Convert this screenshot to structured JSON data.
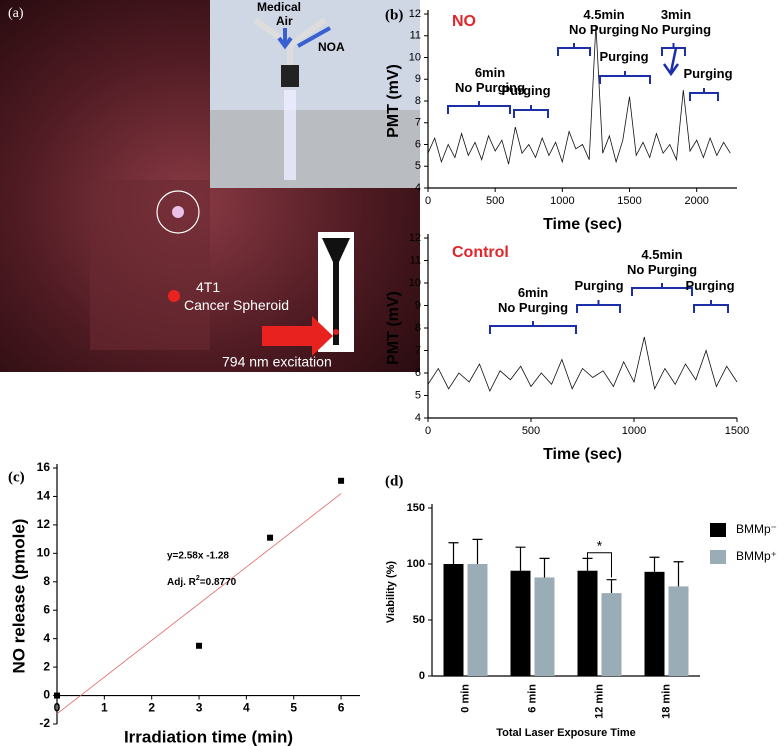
{
  "photo": {
    "panel": "(a)",
    "labels": [
      {
        "lines": [
          "Medical",
          "Air"
        ]
      },
      {
        "lines": [
          "NOA"
        ]
      },
      {
        "lines": [
          "4T1",
          "Cancer Spheroid"
        ]
      },
      {
        "lines": [
          "794 nm excitation"
        ]
      }
    ]
  },
  "chart_data": [
    {
      "type": "line",
      "panel": "(b)",
      "label": "NO",
      "label_color": "#e0262a",
      "annotation_color": "#1c2fa8",
      "xlabel": "Time (sec)",
      "ylabel": "PMT (mV)",
      "xlim": [
        0,
        2300
      ],
      "xticks": [
        0,
        500,
        1000,
        1500,
        2000
      ],
      "ylim": [
        4,
        12
      ],
      "yticks": [
        4,
        5,
        6,
        7,
        8,
        9,
        10,
        11,
        12
      ],
      "annotations": [
        {
          "lines": [
            "6min",
            "No Purging"
          ]
        },
        {
          "lines": [
            "Purging"
          ]
        },
        {
          "lines": [
            "4.5min",
            "No Purging"
          ]
        },
        {
          "lines": [
            "Purging"
          ]
        },
        {
          "lines": [
            "3min",
            "No Purging"
          ]
        },
        {
          "lines": [
            "Purging"
          ]
        }
      ],
      "series": [
        {
          "color": "#111111",
          "x": [
            0,
            50,
            100,
            150,
            200,
            250,
            300,
            350,
            400,
            450,
            500,
            550,
            600,
            650,
            700,
            750,
            800,
            850,
            900,
            950,
            1000,
            1050,
            1100,
            1150,
            1200,
            1250,
            1300,
            1350,
            1400,
            1450,
            1500,
            1550,
            1600,
            1650,
            1700,
            1750,
            1800,
            1850,
            1900,
            1950,
            2000,
            2050,
            2100,
            2150,
            2200,
            2250
          ],
          "values": [
            5.6,
            6.3,
            5.2,
            6.0,
            5.4,
            6.5,
            5.5,
            6.1,
            5.3,
            6.4,
            5.7,
            6.2,
            5.1,
            6.8,
            5.6,
            6.0,
            5.4,
            6.3,
            5.5,
            6.1,
            5.2,
            6.6,
            5.8,
            6.0,
            5.3,
            11.5,
            5.6,
            6.4,
            5.2,
            6.2,
            8.2,
            5.5,
            6.1,
            5.4,
            6.5,
            5.6,
            6.0,
            5.3,
            8.5,
            5.7,
            6.2,
            5.4,
            6.3,
            5.5,
            6.1,
            5.6
          ]
        }
      ]
    },
    {
      "type": "line",
      "label": "Control",
      "label_color": "#e0262a",
      "annotation_color": "#1c2fa8",
      "xlabel": "Time (sec)",
      "ylabel": "PMT (mV)",
      "xlim": [
        0,
        1500
      ],
      "xticks": [
        0,
        500,
        1000,
        1500
      ],
      "ylim": [
        4,
        12
      ],
      "yticks": [
        4,
        5,
        6,
        7,
        8,
        9,
        10,
        11,
        12
      ],
      "annotations": [
        {
          "lines": [
            "6min",
            "No Purging"
          ]
        },
        {
          "lines": [
            "Purging"
          ]
        },
        {
          "lines": [
            "4.5min",
            "No Purging"
          ]
        },
        {
          "lines": [
            "Purging"
          ]
        }
      ],
      "series": [
        {
          "color": "#111111",
          "x": [
            0,
            50,
            100,
            150,
            200,
            250,
            300,
            350,
            400,
            450,
            500,
            550,
            600,
            650,
            700,
            750,
            800,
            850,
            900,
            950,
            1000,
            1050,
            1100,
            1150,
            1200,
            1250,
            1300,
            1350,
            1400,
            1450,
            1500
          ],
          "values": [
            5.5,
            6.2,
            5.3,
            6.0,
            5.6,
            6.4,
            5.2,
            6.1,
            5.7,
            6.3,
            5.4,
            6.0,
            5.5,
            6.6,
            5.3,
            6.2,
            5.8,
            6.1,
            5.4,
            6.5,
            5.6,
            7.6,
            5.3,
            6.2,
            5.5,
            6.4,
            5.7,
            7.0,
            5.4,
            6.3,
            5.6
          ]
        }
      ]
    },
    {
      "type": "scatter",
      "panel": "(c)",
      "xlabel": "Irradiation time (min)",
      "ylabel": "NO release (pmole)",
      "xlim": [
        0,
        6.4
      ],
      "xticks": [
        0,
        1,
        2,
        3,
        4,
        5,
        6
      ],
      "ylim": [
        -2,
        16
      ],
      "yticks": [
        -2,
        0,
        2,
        4,
        6,
        8,
        10,
        12,
        14,
        16
      ],
      "fit_label": "y=2.58x -1.28",
      "r2_label": [
        "Adj. R",
        "2",
        "=0.8770"
      ],
      "series": [
        {
          "style": "points",
          "color": "#000000",
          "x": [
            0,
            3,
            4.5,
            6
          ],
          "values": [
            0,
            3.5,
            11.1,
            15.1
          ]
        },
        {
          "style": "line",
          "color": "#e06666",
          "x": [
            0,
            6
          ],
          "values": [
            -1.28,
            14.2
          ]
        }
      ]
    },
    {
      "type": "bar",
      "panel": "(d)",
      "xlabel": "Total Laser Exposure Time",
      "ylabel": "Viability (%)",
      "categories": [
        "0 min",
        "6 min",
        "12 min",
        "18 min"
      ],
      "ylim": [
        0,
        150
      ],
      "yticks": [
        0,
        50,
        100,
        150
      ],
      "annotations": [
        {
          "text": "*"
        }
      ],
      "series": [
        {
          "name": "BMMp⁻",
          "color": "#000000",
          "values": [
            100,
            94,
            94,
            93
          ],
          "errors": [
            19,
            21,
            11,
            13
          ]
        },
        {
          "name": "BMMp⁺",
          "color": "#9aacb5",
          "values": [
            100,
            88,
            74,
            80
          ],
          "errors": [
            22,
            17,
            12,
            22
          ]
        }
      ]
    }
  ]
}
